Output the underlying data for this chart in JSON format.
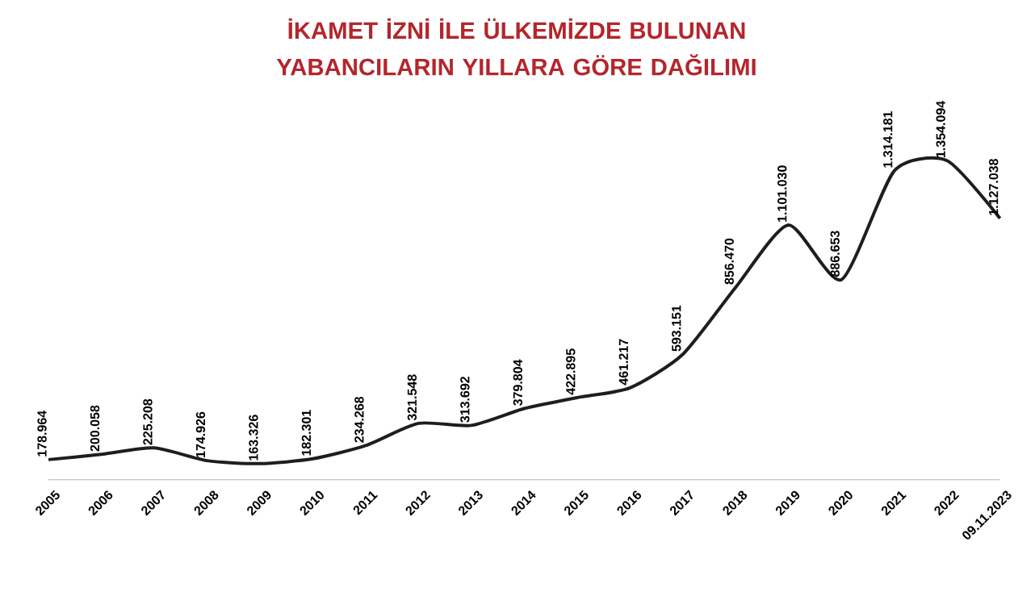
{
  "chart_data": {
    "type": "line",
    "title": "İKAMET İZNİ İLE ÜLKEMİZDE BULUNAN YABANCILARIN YILLARA GÖRE DAĞILIMI",
    "categories": [
      "2005",
      "2006",
      "2007",
      "2008",
      "2009",
      "2010",
      "2011",
      "2012",
      "2013",
      "2014",
      "2015",
      "2016",
      "2017",
      "2018",
      "2019",
      "2020",
      "2021",
      "2022",
      "09.11.2023"
    ],
    "values": [
      178964,
      200058,
      225208,
      174926,
      163326,
      182301,
      234268,
      321548,
      313692,
      379804,
      422895,
      461217,
      593151,
      856470,
      1101030,
      886653,
      1314181,
      1354094,
      1127038
    ],
    "value_labels": [
      "178.964",
      "200.058",
      "225.208",
      "174.926",
      "163.326",
      "182.301",
      "234.268",
      "321.548",
      "313.692",
      "379.804",
      "422.895",
      "461.217",
      "593.151",
      "856.470",
      "1.101.030",
      "886.653",
      "1.314.181",
      "1.354.094",
      "1.127.038"
    ],
    "color": "#1e1e1e",
    "marker": "none",
    "line_style": "solid",
    "grid": false
  }
}
